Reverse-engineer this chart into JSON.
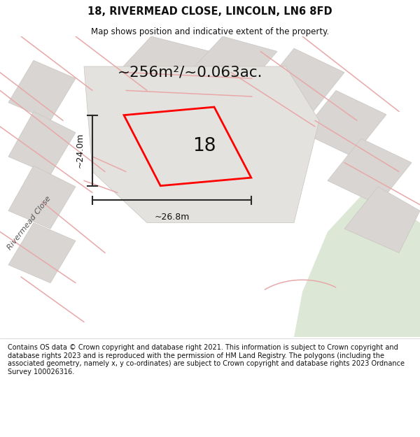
{
  "title_line1": "18, RIVERMEAD CLOSE, LINCOLN, LN6 8FD",
  "title_line2": "Map shows position and indicative extent of the property.",
  "area_text": "~256m²/~0.063ac.",
  "number_label": "18",
  "dim_width": "~26.8m",
  "dim_height": "~24.0m",
  "street_label": "Rivermead Close",
  "footer_text": "Contains OS data © Crown copyright and database right 2021. This information is subject to Crown copyright and database rights 2023 and is reproduced with the permission of HM Land Registry. The polygons (including the associated geometry, namely x, y co-ordinates) are subject to Crown copyright and database rights 2023 Ordnance Survey 100026316.",
  "bg_color": "#edebe8",
  "green_area_color": "#dce8d5",
  "footer_bg": "#ffffff",
  "header_bg": "#ffffff",
  "road_pink": "#e8a8a8",
  "plot_gray": "#d8d5d2",
  "plot_edge": "#c8c5c2"
}
